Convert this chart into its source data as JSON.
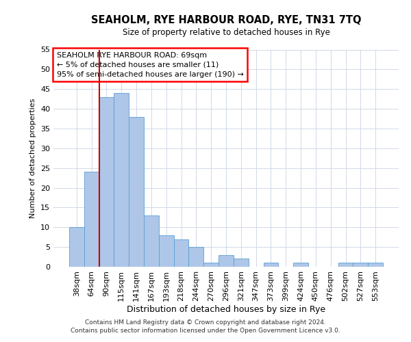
{
  "title": "SEAHOLM, RYE HARBOUR ROAD, RYE, TN31 7TQ",
  "subtitle": "Size of property relative to detached houses in Rye",
  "xlabel": "Distribution of detached houses by size in Rye",
  "ylabel": "Number of detached properties",
  "bar_labels": [
    "38sqm",
    "64sqm",
    "90sqm",
    "115sqm",
    "141sqm",
    "167sqm",
    "193sqm",
    "218sqm",
    "244sqm",
    "270sqm",
    "296sqm",
    "321sqm",
    "347sqm",
    "373sqm",
    "399sqm",
    "424sqm",
    "450sqm",
    "476sqm",
    "502sqm",
    "527sqm",
    "553sqm"
  ],
  "bar_heights": [
    10,
    24,
    43,
    44,
    38,
    13,
    8,
    7,
    5,
    1,
    3,
    2,
    0,
    1,
    0,
    1,
    0,
    0,
    1,
    1,
    1
  ],
  "bar_color": "#aec6e8",
  "bar_edge_color": "#5a9fd4",
  "ylim": [
    0,
    55
  ],
  "yticks": [
    0,
    5,
    10,
    15,
    20,
    25,
    30,
    35,
    40,
    45,
    50,
    55
  ],
  "redline_x": 1.5,
  "annotation_text": "SEAHOLM RYE HARBOUR ROAD: 69sqm\n← 5% of detached houses are smaller (11)\n95% of semi-detached houses are larger (190) →",
  "footnote1": "Contains HM Land Registry data © Crown copyright and database right 2024.",
  "footnote2": "Contains public sector information licensed under the Open Government Licence v3.0.",
  "background_color": "#ffffff",
  "grid_color": "#d0d8e8"
}
